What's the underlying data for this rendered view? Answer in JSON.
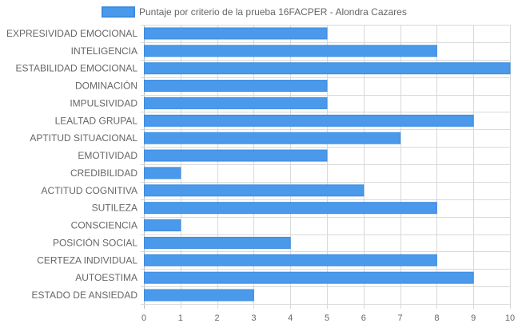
{
  "colors": {
    "bar_fill": "#4a99ea",
    "bar_stroke": "#3c8ce0",
    "grid": "#d9d9d9",
    "text": "#666666"
  },
  "chart_data": {
    "type": "bar",
    "orientation": "horizontal",
    "title": "",
    "xlabel": "",
    "ylabel": "",
    "legend": {
      "position": "top",
      "entries": [
        "Puntaje por criterio de la prueba 16FACPER - Alondra Cazares"
      ]
    },
    "xlim": [
      0,
      10
    ],
    "x_ticks": [
      0,
      1,
      2,
      3,
      4,
      5,
      6,
      7,
      8,
      9,
      10
    ],
    "grid": true,
    "categories": [
      "EXPRESIVIDAD EMOCIONAL",
      "INTELIGENCIA",
      "ESTABILIDAD EMOCIONAL",
      "DOMINACIÓN",
      "IMPULSIVIDAD",
      "LEALTAD GRUPAL",
      "APTITUD SITUACIONAL",
      "EMOTIVIDAD",
      "CREDIBILIDAD",
      "ACTITUD COGNITIVA",
      "SUTILEZA",
      "CONSCIENCIA",
      "POSICIÓN SOCIAL",
      "CERTEZA INDIVIDUAL",
      "AUTOESTIMA",
      "ESTADO DE ANSIEDAD"
    ],
    "series": [
      {
        "name": "Puntaje por criterio de la prueba 16FACPER - Alondra Cazares",
        "values": [
          5,
          8,
          10,
          5,
          5,
          9,
          7,
          5,
          1,
          6,
          8,
          1,
          4,
          8,
          9,
          3
        ]
      }
    ]
  }
}
